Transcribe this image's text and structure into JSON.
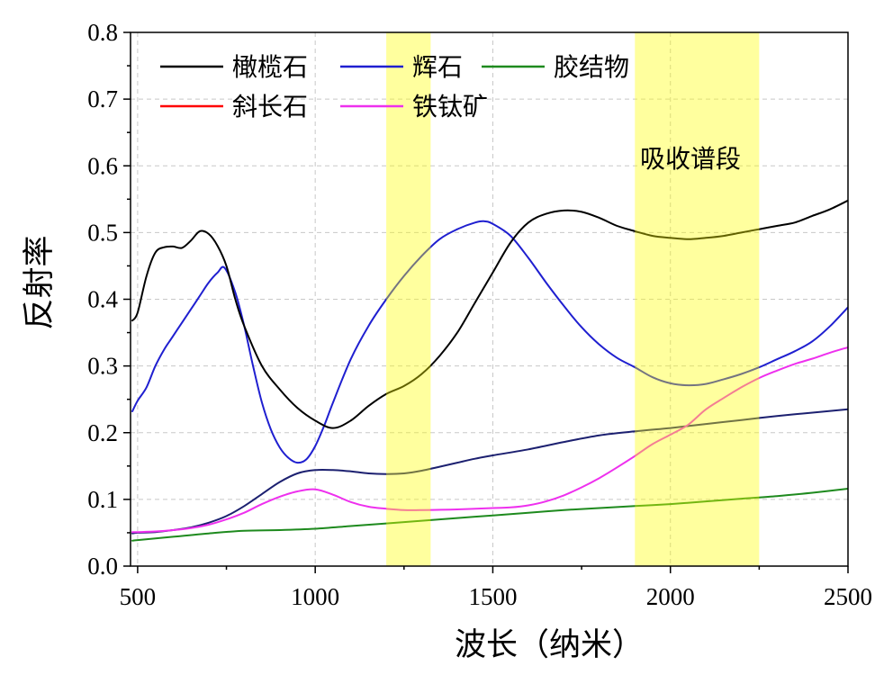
{
  "chart_data": {
    "type": "line",
    "xlabel": "波长（纳米）",
    "ylabel": "反射率",
    "xlim": [
      480,
      2500
    ],
    "ylim": [
      0,
      0.8
    ],
    "x_ticks": [
      "500",
      "1000",
      "1500",
      "2000",
      "2500"
    ],
    "y_ticks": [
      "0.0",
      "0.1",
      "0.2",
      "0.3",
      "0.4",
      "0.5",
      "0.6",
      "0.7",
      "0.8"
    ],
    "grid": true,
    "legend": "top-left",
    "bands": [
      {
        "x": [
          1200,
          1325
        ],
        "color": "#ffff00"
      },
      {
        "x": [
          1900,
          2250
        ],
        "color": "#ffff00"
      }
    ],
    "annotations": [
      {
        "text": "吸收谱段"
      }
    ],
    "series": [
      {
        "name": "橄榄石",
        "color": "#000000",
        "x": [
          485,
          500,
          525,
          550,
          575,
          600,
          625,
          650,
          675,
          700,
          725,
          750,
          775,
          800,
          850,
          900,
          950,
          1000,
          1050,
          1100,
          1150,
          1200,
          1250,
          1300,
          1350,
          1400,
          1450,
          1500,
          1550,
          1600,
          1650,
          1700,
          1750,
          1800,
          1850,
          1900,
          1950,
          2000,
          2050,
          2100,
          2150,
          2200,
          2250,
          2300,
          2350,
          2400,
          2450,
          2500
        ],
        "y": [
          0.368,
          0.38,
          0.435,
          0.47,
          0.478,
          0.479,
          0.477,
          0.488,
          0.502,
          0.498,
          0.48,
          0.45,
          0.4,
          0.36,
          0.3,
          0.265,
          0.237,
          0.218,
          0.207,
          0.218,
          0.24,
          0.258,
          0.27,
          0.288,
          0.315,
          0.35,
          0.395,
          0.44,
          0.485,
          0.515,
          0.528,
          0.533,
          0.531,
          0.522,
          0.51,
          0.502,
          0.495,
          0.492,
          0.49,
          0.492,
          0.495,
          0.5,
          0.505,
          0.51,
          0.515,
          0.525,
          0.535,
          0.548
        ]
      },
      {
        "name": "辉石",
        "color": "#1f1fd0",
        "x": [
          485,
          500,
          525,
          550,
          575,
          600,
          625,
          650,
          675,
          700,
          725,
          745,
          775,
          800,
          825,
          850,
          875,
          900,
          925,
          950,
          975,
          1000,
          1025,
          1050,
          1100,
          1150,
          1200,
          1250,
          1300,
          1350,
          1400,
          1450,
          1475,
          1500,
          1550,
          1600,
          1650,
          1700,
          1750,
          1800,
          1850,
          1900,
          1950,
          2000,
          2050,
          2100,
          2150,
          2200,
          2250,
          2300,
          2350,
          2400,
          2450,
          2500
        ],
        "y": [
          0.232,
          0.248,
          0.268,
          0.3,
          0.325,
          0.345,
          0.365,
          0.385,
          0.405,
          0.425,
          0.44,
          0.447,
          0.41,
          0.36,
          0.3,
          0.245,
          0.205,
          0.178,
          0.162,
          0.155,
          0.16,
          0.18,
          0.21,
          0.245,
          0.31,
          0.36,
          0.4,
          0.435,
          0.465,
          0.49,
          0.505,
          0.515,
          0.517,
          0.513,
          0.495,
          0.462,
          0.425,
          0.39,
          0.358,
          0.332,
          0.312,
          0.298,
          0.283,
          0.274,
          0.271,
          0.273,
          0.28,
          0.288,
          0.298,
          0.31,
          0.322,
          0.337,
          0.36,
          0.388
        ]
      },
      {
        "name": "胶结物",
        "color": "#1e8a1e",
        "x": [
          485,
          500,
          600,
          700,
          800,
          900,
          1000,
          1100,
          1200,
          1300,
          1400,
          1500,
          1600,
          1700,
          1800,
          1900,
          2000,
          2100,
          2200,
          2300,
          2400,
          2500
        ],
        "y": [
          0.038,
          0.039,
          0.044,
          0.049,
          0.053,
          0.054,
          0.056,
          0.06,
          0.064,
          0.068,
          0.072,
          0.076,
          0.08,
          0.084,
          0.087,
          0.09,
          0.093,
          0.097,
          0.101,
          0.105,
          0.11,
          0.116
        ]
      },
      {
        "name": "斜长石",
        "color": "#1c2070",
        "legend_color": "#ff0000",
        "x": [
          485,
          500,
          550,
          600,
          650,
          700,
          750,
          800,
          850,
          900,
          950,
          1000,
          1050,
          1100,
          1150,
          1200,
          1250,
          1300,
          1350,
          1400,
          1450,
          1500,
          1600,
          1700,
          1800,
          1900,
          2000,
          2100,
          2200,
          2300,
          2400,
          2500
        ],
        "y": [
          0.049,
          0.05,
          0.051,
          0.054,
          0.058,
          0.065,
          0.075,
          0.09,
          0.108,
          0.126,
          0.139,
          0.144,
          0.144,
          0.142,
          0.139,
          0.138,
          0.139,
          0.143,
          0.149,
          0.155,
          0.161,
          0.166,
          0.175,
          0.186,
          0.196,
          0.202,
          0.207,
          0.213,
          0.219,
          0.225,
          0.23,
          0.235
        ]
      },
      {
        "name": "铁钛矿",
        "color": "#ee30ee",
        "x": [
          485,
          500,
          550,
          600,
          650,
          700,
          750,
          800,
          850,
          900,
          950,
          1000,
          1050,
          1100,
          1150,
          1200,
          1250,
          1300,
          1400,
          1500,
          1550,
          1600,
          1650,
          1700,
          1750,
          1800,
          1850,
          1900,
          1950,
          2000,
          2050,
          2100,
          2150,
          2200,
          2250,
          2300,
          2350,
          2400,
          2450,
          2500
        ],
        "y": [
          0.051,
          0.051,
          0.052,
          0.054,
          0.057,
          0.062,
          0.07,
          0.08,
          0.093,
          0.104,
          0.112,
          0.115,
          0.107,
          0.096,
          0.089,
          0.086,
          0.084,
          0.084,
          0.085,
          0.087,
          0.088,
          0.091,
          0.097,
          0.106,
          0.118,
          0.132,
          0.148,
          0.165,
          0.183,
          0.197,
          0.212,
          0.235,
          0.252,
          0.268,
          0.282,
          0.293,
          0.303,
          0.311,
          0.32,
          0.328
        ]
      }
    ]
  }
}
